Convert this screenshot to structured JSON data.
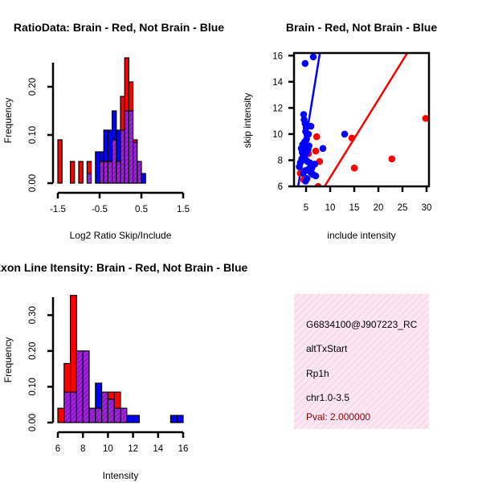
{
  "colors": {
    "red": "#ff0000",
    "blue": "#0000ff",
    "overlap": "#a020f0",
    "overlap_hatch": "#8b1c8b",
    "info_bg": "#fbe3f0",
    "pval": "#8b0000"
  },
  "chart_data": [
    {
      "id": "ratio-hist",
      "type": "bar",
      "title": "RatioData: Brain - Red, Not Brain - Blue",
      "xlabel": "Log2 Ratio Skip/Include",
      "ylabel": "Frequency",
      "xlim": [
        -1.5,
        1.5
      ],
      "ylim": [
        0,
        0.25
      ],
      "xticks": [
        "-1.5",
        "-0.5",
        "0.5",
        "1.5"
      ],
      "xtick_values": [
        -1.5,
        -0.5,
        0.5,
        1.5
      ],
      "yticks": [
        "0.00",
        "0.10",
        "0.20"
      ],
      "ytick_values": [
        0,
        0.1,
        0.2
      ],
      "bin_start": -1.5,
      "bin_width": 0.1,
      "series": [
        {
          "name": "Brain",
          "color": "red",
          "values": [
            0.09,
            0,
            0,
            0.045,
            0,
            0.045,
            0,
            0.045,
            0,
            0,
            0.045,
            0.045,
            0.045,
            0.09,
            0.045,
            0.18,
            0.26,
            0.21,
            0.09,
            0.045,
            0,
            0
          ]
        },
        {
          "name": "Not Brain",
          "color": "blue",
          "values": [
            0,
            0,
            0,
            0,
            0,
            0,
            0,
            0.02,
            0,
            0.065,
            0.065,
            0.11,
            0.11,
            0.15,
            0.11,
            0.11,
            0.15,
            0.15,
            0.085,
            0.045,
            0.02,
            0
          ]
        }
      ]
    },
    {
      "id": "scatter",
      "type": "scatter",
      "title": "Brain - Red, Not Brain - Blue",
      "xlabel": "include intensity",
      "ylabel": "skip intensity",
      "xlim": [
        2.5,
        30.5
      ],
      "ylim": [
        6,
        16.2
      ],
      "xticks": [
        "5",
        "10",
        "15",
        "20",
        "25",
        "30"
      ],
      "xtick_values": [
        5,
        10,
        15,
        20,
        25,
        30
      ],
      "yticks": [
        "6",
        "8",
        "10",
        "12",
        "14",
        "16"
      ],
      "ytick_values": [
        6,
        8,
        10,
        12,
        14,
        16
      ],
      "series": [
        {
          "name": "Brain",
          "color": "red",
          "x": [
            3.8,
            6.2,
            7.5,
            7.0,
            7.8,
            14.5,
            15.0,
            22.8,
            29.8,
            4.5,
            7.2,
            5.5
          ],
          "y": [
            7.0,
            7.0,
            6.0,
            8.7,
            7.9,
            9.7,
            7.4,
            8.1,
            11.2,
            6.5,
            9.8,
            8.5
          ]
        },
        {
          "name": "Not Brain",
          "color": "blue",
          "x": [
            4.8,
            6.5,
            4.5,
            4.6,
            4.8,
            5.0,
            4.9,
            5.2,
            5.5,
            5.1,
            4.7,
            4.3,
            4.0,
            4.2,
            4.4,
            4.6,
            5.0,
            5.3,
            5.8,
            6.0,
            6.2,
            5.5,
            5.9,
            6.4,
            4.8,
            4.4,
            3.8,
            3.6,
            4.1,
            5.4,
            6.8,
            7.0,
            8.5,
            13.0,
            6.0,
            5.2,
            4.9,
            4.5,
            5.6,
            5.0
          ],
          "y": [
            15.4,
            15.9,
            11.5,
            11.1,
            10.8,
            10.5,
            10.2,
            9.9,
            10.0,
            9.6,
            9.4,
            9.2,
            8.9,
            8.6,
            8.4,
            8.2,
            8.0,
            7.9,
            7.8,
            7.6,
            7.4,
            7.3,
            7.1,
            6.9,
            7.2,
            7.0,
            7.8,
            7.5,
            8.1,
            8.8,
            7.7,
            6.8,
            8.9,
            10.0,
            10.6,
            6.6,
            6.4,
            9.0,
            9.1,
            8.5
          ]
        }
      ],
      "lines": [
        {
          "color": "blue",
          "x": [
            3.0,
            8.0
          ],
          "y": [
            5.2,
            16.5
          ]
        },
        {
          "color": "red",
          "x": [
            8.0,
            26.5
          ],
          "y": [
            5.5,
            16.5
          ]
        }
      ]
    },
    {
      "id": "intensity-hist",
      "type": "bar",
      "title": "Exon Line Itensity: Brain - Red, Not Brain - Blue",
      "xlabel": "Intensity",
      "ylabel": "Frequency",
      "xlim": [
        6,
        16
      ],
      "ylim": [
        0,
        0.35
      ],
      "xticks": [
        "6",
        "8",
        "10",
        "12",
        "14",
        "16"
      ],
      "xtick_values": [
        6,
        8,
        10,
        12,
        14,
        16
      ],
      "yticks": [
        "0.00",
        "0.10",
        "0.20",
        "0.30"
      ],
      "ytick_values": [
        0,
        0.1,
        0.2,
        0.3
      ],
      "bin_start": 6,
      "bin_width": 0.5,
      "series": [
        {
          "name": "Brain",
          "color": "red",
          "values": [
            0.04,
            0.165,
            0.355,
            0.2,
            0.2,
            0.04,
            0.04,
            0.085,
            0.085,
            0.085,
            0.04,
            0,
            0,
            0,
            0,
            0,
            0,
            0,
            0,
            0
          ]
        },
        {
          "name": "Not Brain",
          "color": "blue",
          "values": [
            0,
            0.085,
            0.085,
            0.2,
            0.2,
            0.04,
            0.11,
            0.085,
            0.065,
            0.04,
            0.04,
            0.02,
            0.02,
            0,
            0,
            0,
            0,
            0,
            0.02,
            0.02
          ]
        }
      ]
    }
  ],
  "info": {
    "id": "G6834100@J907223_RC",
    "event": "altTxStart",
    "gene": "Rp1h",
    "location": "chr1.0-3.5",
    "pval": "Pval: 2.000000"
  }
}
